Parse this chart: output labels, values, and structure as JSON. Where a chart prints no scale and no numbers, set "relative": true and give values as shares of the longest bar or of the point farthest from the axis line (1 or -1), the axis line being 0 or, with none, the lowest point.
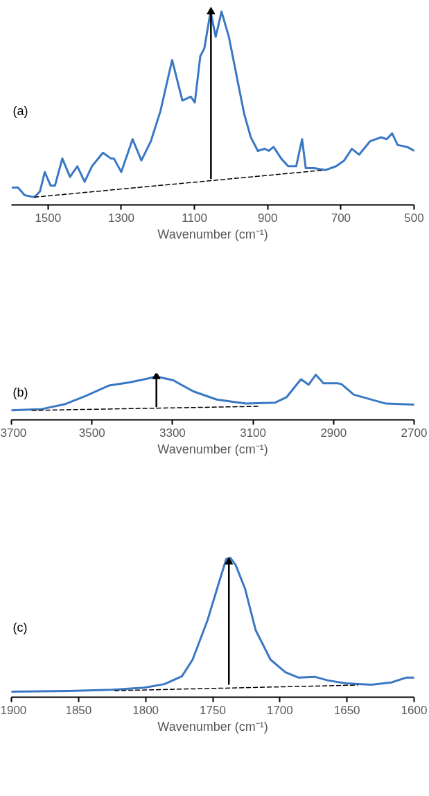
{
  "chart_data": [
    {
      "type": "line",
      "relative": true,
      "annotations": [
        "(a)"
      ],
      "xlabel": "Wavenumber (cm⁻¹)",
      "xlim": [
        1600,
        500
      ],
      "xticks": [
        1500,
        1300,
        1100,
        900,
        700,
        500
      ],
      "series": [
        {
          "color": "#3a78c4",
          "line_style": "solid",
          "x": [
            1597,
            1582,
            1564,
            1537,
            1522,
            1509,
            1493,
            1481,
            1461,
            1440,
            1420,
            1400,
            1380,
            1350,
            1328,
            1320,
            1300,
            1269,
            1245,
            1219,
            1193,
            1161,
            1133,
            1110,
            1099,
            1084,
            1073,
            1056,
            1042,
            1026,
            1006,
            983,
            964,
            946,
            927,
            908,
            897,
            884,
            863,
            844,
            822,
            806,
            796,
            773,
            743,
            713,
            691,
            670,
            650,
            620,
            590,
            575,
            560,
            545,
            519,
            500
          ],
          "values": [
            0.09,
            0.09,
            0.05,
            0.04,
            0.07,
            0.17,
            0.1,
            0.1,
            0.24,
            0.145,
            0.2,
            0.12,
            0.2,
            0.27,
            0.24,
            0.24,
            0.17,
            0.34,
            0.23,
            0.33,
            0.485,
            0.75,
            0.54,
            0.56,
            0.53,
            0.77,
            0.81,
            1.0,
            0.87,
            1.0,
            0.87,
            0.65,
            0.47,
            0.35,
            0.28,
            0.29,
            0.28,
            0.3,
            0.24,
            0.2,
            0.2,
            0.34,
            0.19,
            0.19,
            0.18,
            0.2,
            0.23,
            0.29,
            0.26,
            0.33,
            0.35,
            0.34,
            0.37,
            0.31,
            0.3,
            0.28
          ]
        },
        {
          "color": "#000000",
          "line_style": "dashed",
          "x": [
            1537,
            747
          ],
          "values": [
            0.04,
            0.18
          ]
        },
        {
          "color": "#000000",
          "line_style": "solid",
          "x": [
            1055,
            1055
          ],
          "values": [
            0.134,
            1.0
          ]
        }
      ]
    },
    {
      "type": "line",
      "relative": true,
      "annotations": [
        "(b)"
      ],
      "xlabel": "Wavenumber (cm⁻¹)",
      "xlim": [
        3700,
        2700
      ],
      "xticks": [
        3700,
        3500,
        3300,
        3100,
        2900,
        2700
      ],
      "series": [
        {
          "color": "#3a78c4",
          "line_style": "solid",
          "x": [
            3700,
            3624,
            3566,
            3516,
            3458,
            3407,
            3364,
            3340,
            3299,
            3248,
            3190,
            3118,
            3046,
            3017,
            2981,
            2962,
            2944,
            2925,
            2890,
            2880,
            2850,
            2810,
            2770,
            2700
          ],
          "values": [
            0.21,
            0.24,
            0.35,
            0.53,
            0.76,
            0.83,
            0.91,
            0.96,
            0.88,
            0.63,
            0.45,
            0.36,
            0.38,
            0.5,
            0.9,
            0.78,
            1.0,
            0.81,
            0.81,
            0.79,
            0.56,
            0.46,
            0.36,
            0.34
          ]
        },
        {
          "color": "#000000",
          "line_style": "dashed",
          "x": [
            3649,
            3082
          ],
          "values": [
            0.21,
            0.3
          ]
        },
        {
          "color": "#000000",
          "line_style": "solid",
          "x": [
            3340,
            3340
          ],
          "values": [
            0.28,
            0.96
          ]
        }
      ]
    },
    {
      "type": "line",
      "relative": true,
      "annotations": [
        "(c)"
      ],
      "xlabel": "Wavenumber (cm⁻¹)",
      "xlim": [
        1900,
        1600
      ],
      "xticks": [
        1900,
        1850,
        1800,
        1750,
        1700,
        1650,
        1600
      ],
      "series": [
        {
          "color": "#3a78c4",
          "line_style": "solid",
          "x": [
            1900,
            1857,
            1825,
            1801,
            1786,
            1773,
            1765,
            1754,
            1745,
            1740,
            1737,
            1733,
            1726,
            1718,
            1707,
            1696,
            1686,
            1674,
            1664,
            1651,
            1632,
            1617,
            1606,
            1600
          ],
          "values": [
            0.04,
            0.045,
            0.054,
            0.068,
            0.094,
            0.15,
            0.27,
            0.55,
            0.835,
            0.99,
            1.0,
            0.95,
            0.78,
            0.48,
            0.27,
            0.18,
            0.14,
            0.146,
            0.12,
            0.1,
            0.09,
            0.106,
            0.14,
            0.14
          ]
        },
        {
          "color": "#000000",
          "line_style": "dashed",
          "x": [
            1823,
            1642
          ],
          "values": [
            0.047,
            0.087
          ]
        },
        {
          "color": "#000000",
          "line_style": "solid",
          "x": [
            1738,
            1738
          ],
          "values": [
            0.09,
            0.97
          ]
        }
      ]
    }
  ]
}
